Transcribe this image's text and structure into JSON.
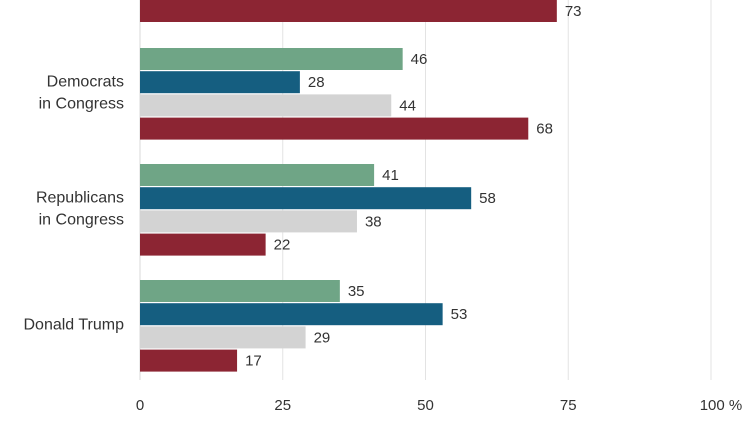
{
  "chart_data": {
    "type": "bar",
    "orientation": "horizontal",
    "categories": [
      "",
      "Democrats in Congress",
      "Republicans in Congress",
      "Donald Trump"
    ],
    "category_lines": [
      [],
      [
        "Democrats",
        "in Congress"
      ],
      [
        "Republicans",
        "in Congress"
      ],
      [
        "Donald Trump"
      ]
    ],
    "series": [
      {
        "color": "#6fa586",
        "values": [
          null,
          46,
          41,
          35
        ]
      },
      {
        "color": "#155e80",
        "values": [
          null,
          28,
          58,
          53
        ]
      },
      {
        "color": "#d3d3d3",
        "values": [
          null,
          44,
          38,
          29
        ]
      },
      {
        "color": "#8c2533",
        "values": [
          73,
          68,
          22,
          17
        ]
      }
    ],
    "xlim": [
      0,
      100
    ],
    "xticks": [
      "0",
      "25",
      "50",
      "75",
      "100 %"
    ],
    "grid": true
  }
}
